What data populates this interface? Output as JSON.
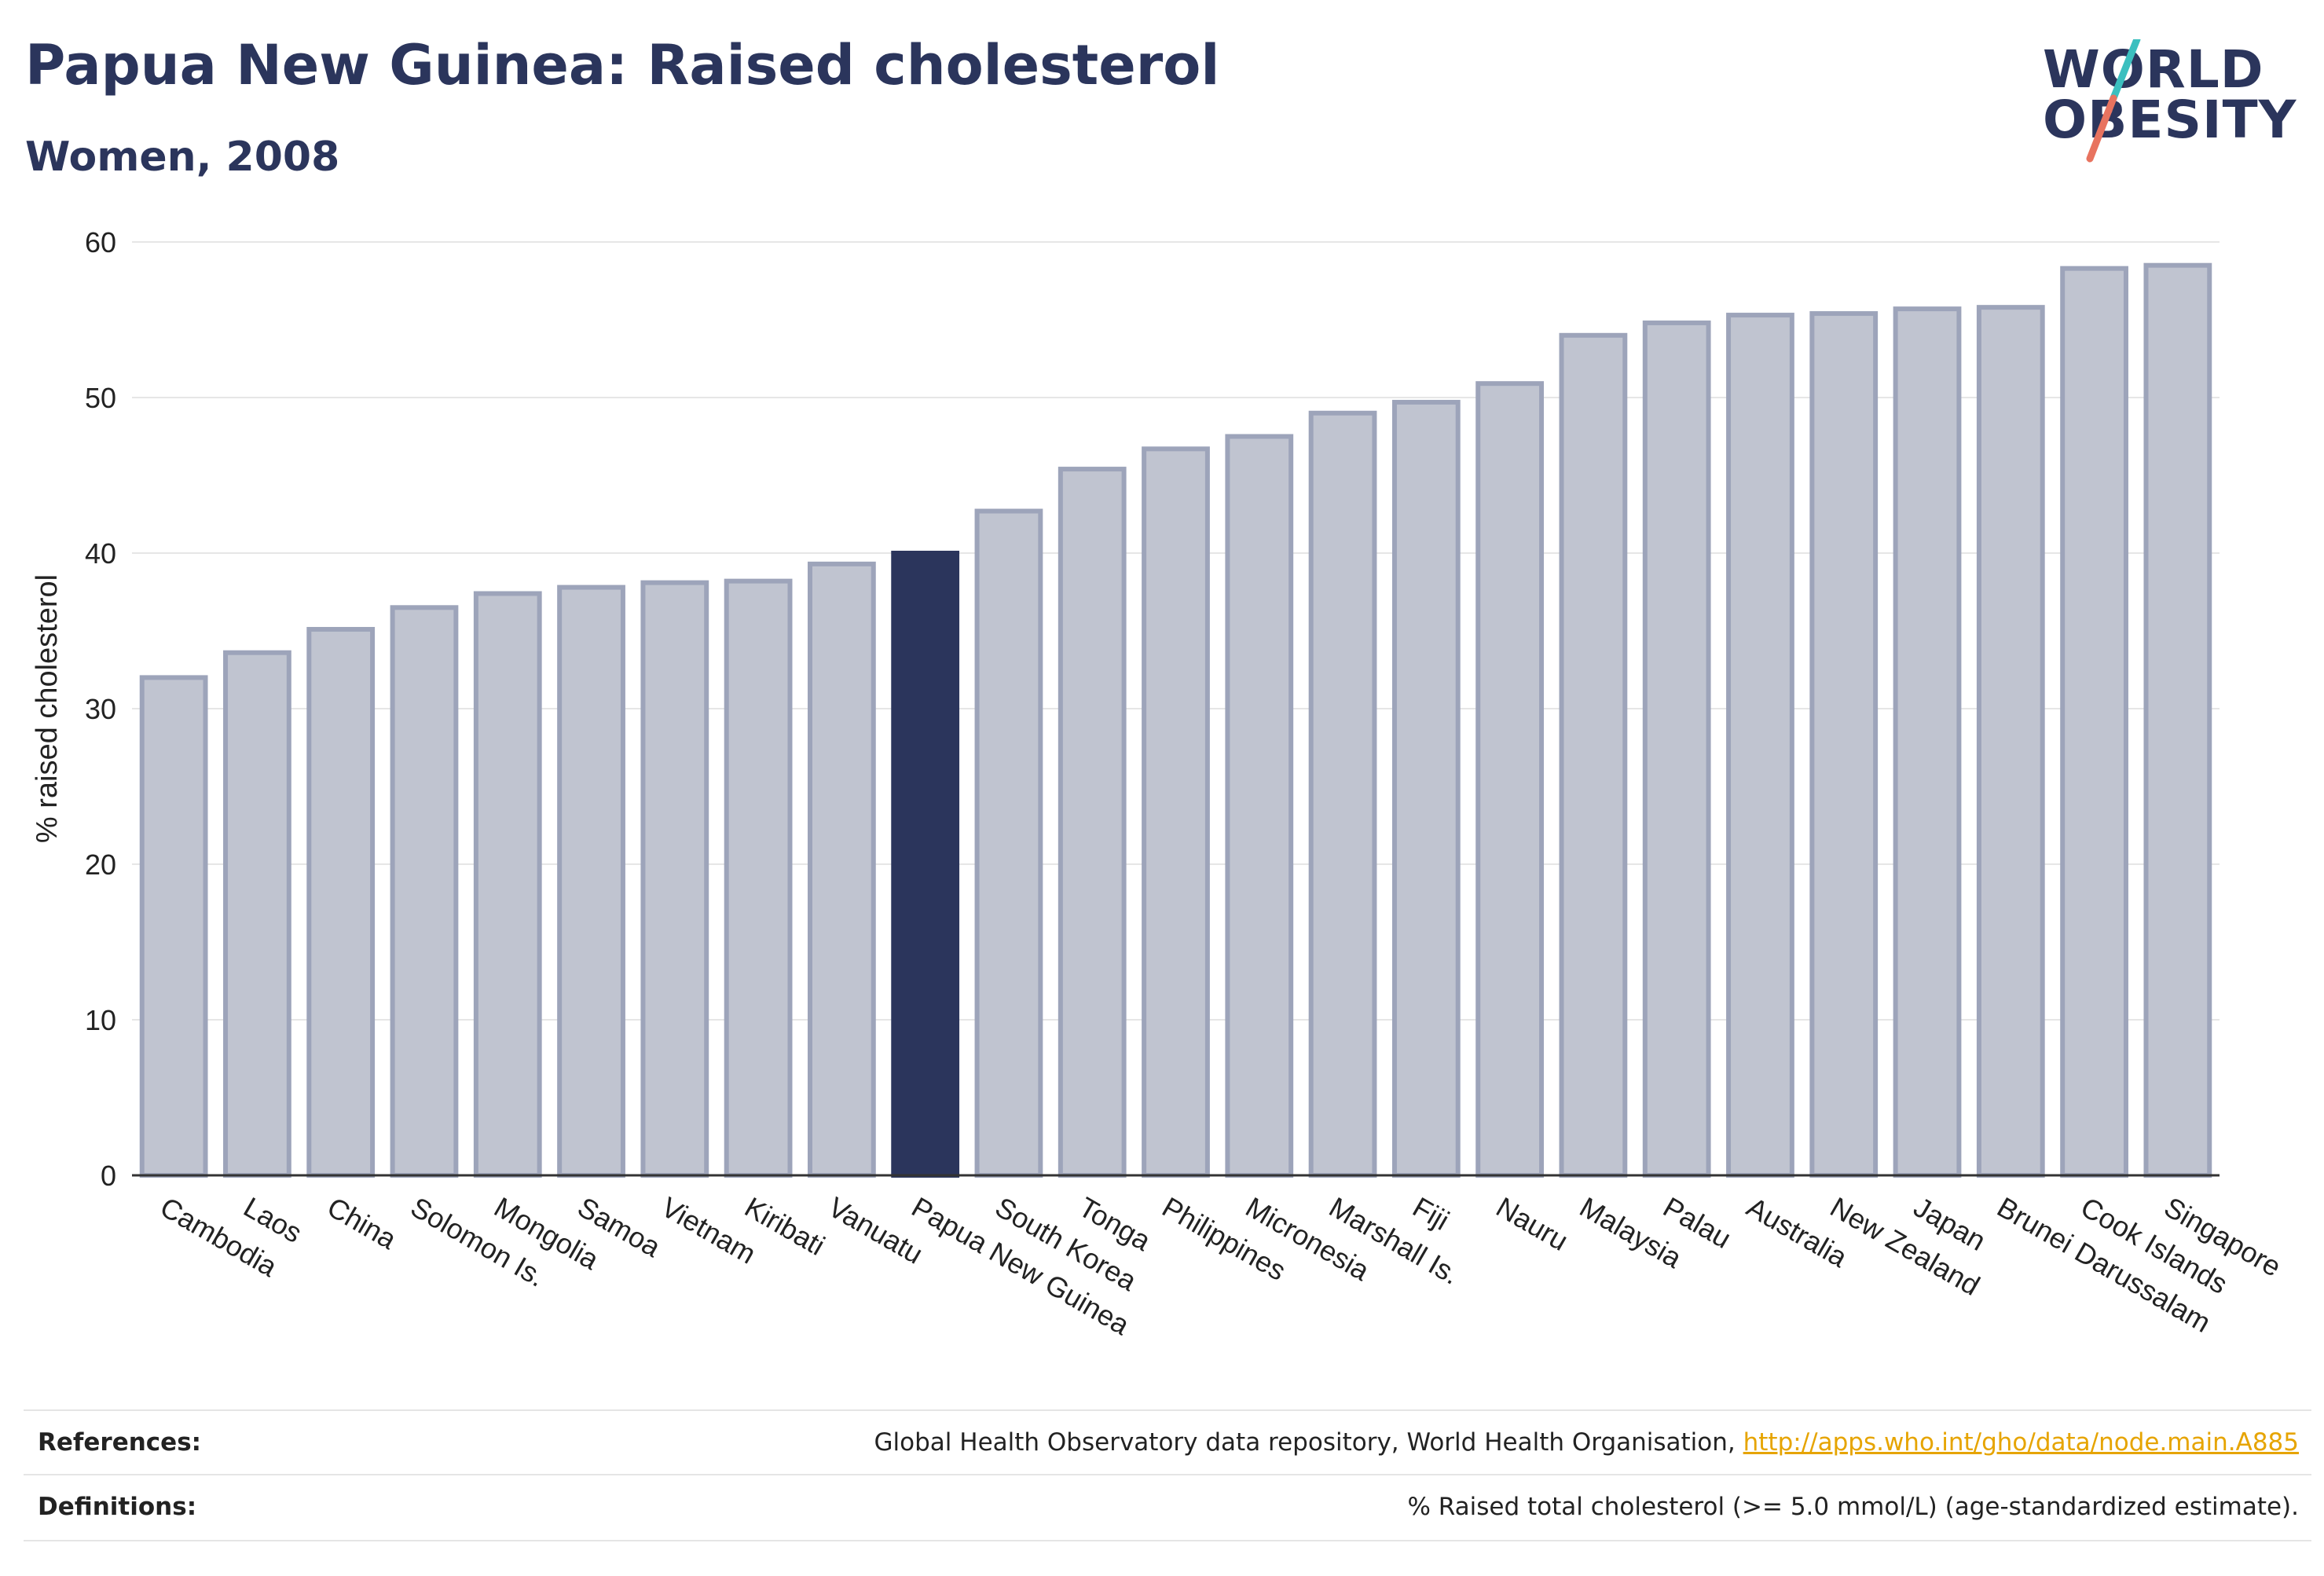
{
  "header": {
    "title": "Papua New Guinea: Raised cholesterol",
    "subtitle": "Women, 2008"
  },
  "logo": {
    "line1": "WORLD",
    "line2": "OBESITY"
  },
  "colors": {
    "bar_default_fill": "#c0c4d0",
    "bar_default_stroke": "#9da4ba",
    "bar_highlight": "#2b355c",
    "title": "#2b355c",
    "grid": "#e6e6e6",
    "logo_teal": "#3bbfbf",
    "logo_coral": "#e8735f",
    "link": "#e6a400"
  },
  "chart_data": {
    "type": "bar",
    "title": "Papua New Guinea: Raised cholesterol",
    "subtitle": "Women, 2008",
    "xlabel": "",
    "ylabel": "% raised cholesterol",
    "ylim": [
      0,
      60
    ],
    "yticks": [
      0,
      10,
      20,
      30,
      40,
      50,
      60
    ],
    "grid": true,
    "highlight": "Papua New Guinea",
    "categories": [
      "Cambodia",
      "Laos",
      "China",
      "Solomon Is.",
      "Mongolia",
      "Samoa",
      "Vietnam",
      "Kiribati",
      "Vanuatu",
      "Papua New Guinea",
      "South Korea",
      "Tonga",
      "Philippines",
      "Micronesia",
      "Marshall Is.",
      "Fiji",
      "Nauru",
      "Malaysia",
      "Palau",
      "Australia",
      "New Zealand",
      "Japan",
      "Brunei Darussalam",
      "Cook Islands",
      "Singapore"
    ],
    "values": [
      32.0,
      33.6,
      35.1,
      36.5,
      37.4,
      37.8,
      38.1,
      38.2,
      39.3,
      40.0,
      42.7,
      45.4,
      46.7,
      47.5,
      49.0,
      49.7,
      50.9,
      54.0,
      54.8,
      55.3,
      55.4,
      55.7,
      55.8,
      58.3,
      58.5
    ]
  },
  "footer": {
    "references_label": "References:",
    "references_text": "Global Health Observatory data repository, World Health Organisation, ",
    "references_link": "http://apps.who.int/gho/data/node.main.A885",
    "definitions_label": "Definitions:",
    "definitions_text": "% Raised total cholesterol (>= 5.0 mmol/L) (age-standardized estimate)."
  }
}
